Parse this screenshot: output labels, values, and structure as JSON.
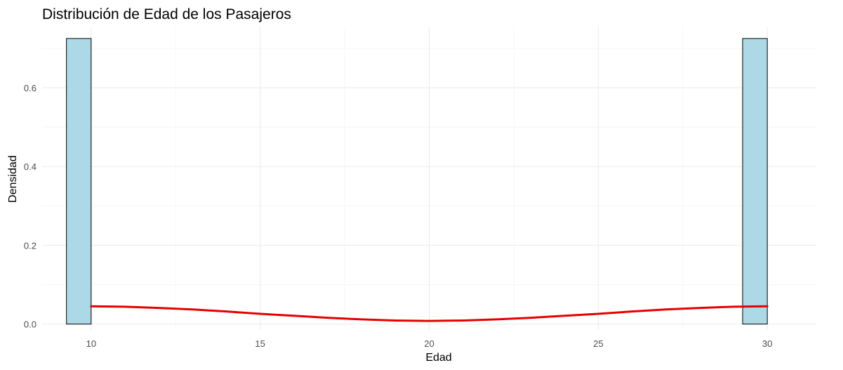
{
  "chart_data": {
    "type": "bar",
    "title": "Distribución de Edad de los Pasajeros",
    "xlabel": "Edad",
    "ylabel": "Densidad",
    "xlim": [
      8.55,
      31.45
    ],
    "ylim": [
      -0.015,
      0.755
    ],
    "x_ticks": [
      10,
      15,
      20,
      25,
      30
    ],
    "x_tick_labels": [
      "10",
      "15",
      "20",
      "25",
      "30"
    ],
    "y_ticks": [
      0.0,
      0.2,
      0.4,
      0.6
    ],
    "y_tick_labels": [
      "0.0",
      "0.2",
      "0.4",
      "0.6"
    ],
    "grid": true,
    "histogram": {
      "bins": [
        {
          "x0": 9.27,
          "x1": 10.0,
          "density": 0.725
        },
        {
          "x0": 29.27,
          "x1": 30.0,
          "density": 0.725
        }
      ],
      "fill": "#add8e6",
      "stroke": "#000000"
    },
    "density_curve": {
      "color": "#e60000",
      "x": [
        10,
        11,
        12,
        13,
        14,
        15,
        16,
        17,
        18,
        19,
        20,
        21,
        22,
        23,
        24,
        25,
        26,
        27,
        28,
        29,
        30
      ],
      "y": [
        0.045,
        0.044,
        0.041,
        0.037,
        0.032,
        0.026,
        0.021,
        0.016,
        0.012,
        0.009,
        0.008,
        0.009,
        0.012,
        0.016,
        0.021,
        0.026,
        0.032,
        0.037,
        0.041,
        0.044,
        0.045
      ]
    }
  }
}
